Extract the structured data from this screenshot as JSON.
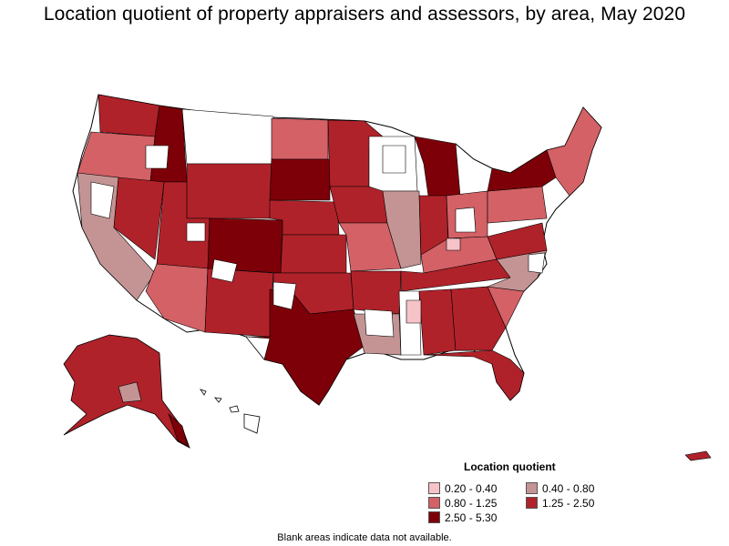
{
  "title": "Location quotient of property appraisers and assessors, by area, May 2020",
  "legend": {
    "title": "Location quotient",
    "items": [
      {
        "label": "0.20 - 0.40",
        "color": "#f6c3c8"
      },
      {
        "label": "0.40 - 0.80",
        "color": "#c49494"
      },
      {
        "label": "0.80 - 1.25",
        "color": "#d36166"
      },
      {
        "label": "1.25 - 2.50",
        "color": "#b0222a"
      },
      {
        "label": "2.50 - 5.30",
        "color": "#7d0008"
      }
    ]
  },
  "note": "Blank areas indicate data not available.",
  "map": {
    "outline_color": "#000000",
    "blank_color": "#ffffff"
  }
}
